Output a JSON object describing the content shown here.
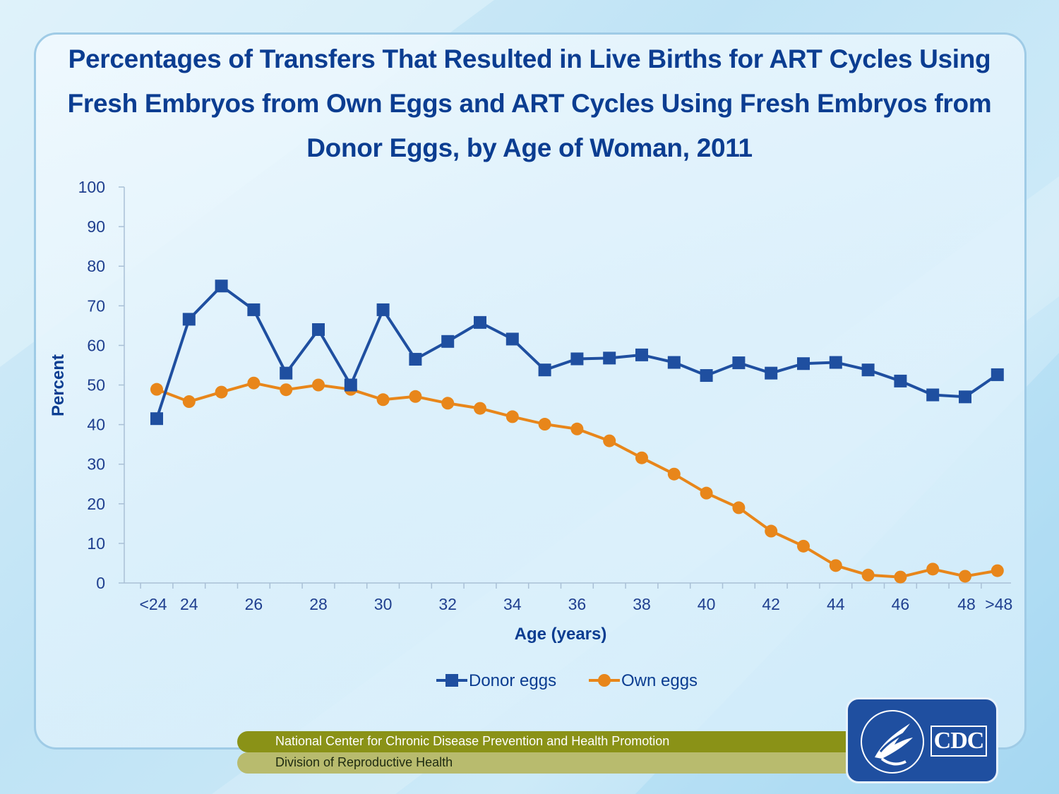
{
  "title": "Percentages of Transfers That Resulted in Live Births for ART Cycles Using Fresh Embryos from Own Eggs and ART Cycles Using Fresh Embryos from Donor Eggs, by Age of Woman, 2011",
  "footer": {
    "center": "National Center for Chronic Disease Prevention and Health Promotion",
    "division": "Division of Reproductive Health"
  },
  "logo": {
    "text": "CDC",
    "icon": "hhs-eagle-seal-icon"
  },
  "colors": {
    "donor": "#1f4fa0",
    "own": "#e8861a",
    "title": "#0b3d91",
    "axis_text": "#1f3f8f"
  },
  "chart_data": {
    "type": "line",
    "title": "Percentages of Transfers That Resulted in Live Births for ART Cycles Using Fresh Embryos from Own Eggs and ART Cycles Using Fresh Embryos from Donor Eggs, by Age of Woman, 2011",
    "xlabel": "Age (years)",
    "ylabel": "Percent",
    "ylim": [
      0,
      100
    ],
    "yticks": [
      0,
      10,
      20,
      30,
      40,
      50,
      60,
      70,
      80,
      90,
      100
    ],
    "categories": [
      "<24",
      "24",
      "25",
      "26",
      "27",
      "28",
      "29",
      "30",
      "31",
      "32",
      "33",
      "34",
      "35",
      "36",
      "37",
      "38",
      "39",
      "40",
      "41",
      "42",
      "43",
      "44",
      "45",
      "46",
      "47",
      "48",
      ">48"
    ],
    "xtick_labels": [
      "<24",
      "24",
      "26",
      "28",
      "30",
      "32",
      "34",
      "36",
      "38",
      "40",
      "42",
      "44",
      "46",
      "48",
      ">48"
    ],
    "legend_position": "bottom",
    "series": [
      {
        "name": "Donor eggs",
        "marker": "square",
        "values": [
          41.5,
          66.6,
          75.0,
          69.0,
          53.0,
          64.0,
          50.0,
          69.0,
          56.5,
          61.0,
          65.8,
          61.6,
          53.8,
          56.6,
          56.8,
          57.6,
          55.7,
          52.4,
          55.6,
          53.0,
          55.4,
          55.7,
          53.8,
          51.0,
          47.5,
          47.0,
          52.6
        ]
      },
      {
        "name": "Own eggs",
        "marker": "circle",
        "values": [
          48.9,
          45.8,
          48.2,
          50.5,
          48.8,
          50.0,
          48.9,
          46.3,
          47.1,
          45.4,
          44.1,
          42.0,
          40.1,
          38.9,
          35.9,
          31.6,
          27.5,
          22.7,
          19.0,
          13.1,
          9.3,
          4.4,
          2.0,
          1.5,
          3.5,
          1.7,
          3.1
        ]
      }
    ]
  }
}
